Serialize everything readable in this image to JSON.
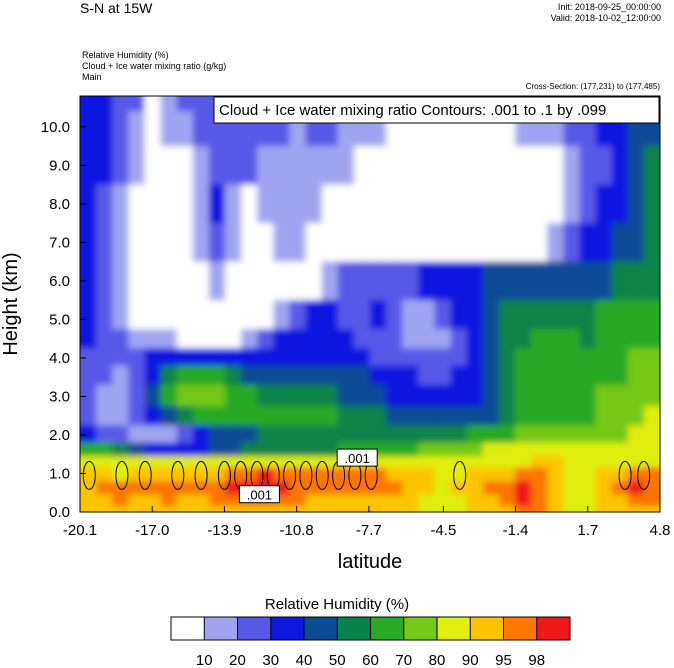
{
  "header": {
    "title": "S-N at 15W",
    "init": "Init: 2018-09-25_00:00:00",
    "valid": "Valid: 2018-10-02_12:00:00",
    "fields": [
      "Relative Humidity   (%)",
      "Cloud + Ice water mixing ratio   (g/kg)",
      "Main"
    ],
    "cross_section": "Cross-Section: (177,231) to (177,485)"
  },
  "chart_data": {
    "type": "heatmap",
    "title": "Cloud + Ice water mixing ratio Contours: .001 to .1 by .099",
    "xlabel": "latitude",
    "ylabel": "Height (km)",
    "x_ticks": [
      "-20.1",
      "-17.0",
      "-13.9",
      "-10.8",
      "-7.7",
      "-4.5",
      "-1.4",
      "1.7",
      "4.8"
    ],
    "y_ticks": [
      "0.0",
      "1.0",
      "2.0",
      "3.0",
      "4.0",
      "5.0",
      "6.0",
      "7.0",
      "8.0",
      "9.0",
      "10.0"
    ],
    "xlim": [
      -20.1,
      4.8
    ],
    "ylim": [
      0,
      10.8
    ],
    "contour_labels": [
      ".001",
      ".001"
    ],
    "colorbar": {
      "title": "Relative Humidity  (%)",
      "levels": [
        "10",
        "20",
        "30",
        "40",
        "50",
        "60",
        "70",
        "80",
        "90",
        "95",
        "98"
      ],
      "colors": [
        "#ffffff",
        "#a0a4f0",
        "#5858e8",
        "#0c18e0",
        "#0a4c96",
        "#08844a",
        "#28aa28",
        "#74c818",
        "#e0ee10",
        "#fcc400",
        "#fc7600",
        "#f01818"
      ]
    },
    "rh_rows": [
      {
        "h": 10.8,
        "rh": [
          3,
          3,
          2,
          2,
          0,
          1,
          2,
          2,
          2,
          2,
          2,
          2,
          2,
          2,
          2,
          2,
          2,
          2,
          1,
          1,
          1,
          1,
          1,
          1,
          1,
          1,
          1,
          1,
          1,
          2,
          2,
          3,
          3,
          3,
          3,
          4
        ]
      },
      {
        "h": 10.0,
        "rh": [
          3,
          3,
          2,
          1,
          0,
          1,
          1,
          2,
          2,
          2,
          2,
          2,
          2,
          1,
          2,
          2,
          1,
          1,
          1,
          0,
          0,
          0,
          0,
          0,
          0,
          0,
          0,
          1,
          1,
          1,
          2,
          2,
          3,
          3,
          4,
          4
        ]
      },
      {
        "h": 9.0,
        "rh": [
          3,
          3,
          2,
          1,
          0,
          0,
          0,
          1,
          2,
          2,
          2,
          1,
          1,
          1,
          1,
          1,
          1,
          0,
          0,
          0,
          0,
          0,
          0,
          0,
          0,
          0,
          0,
          0,
          0,
          0,
          1,
          2,
          2,
          3,
          4,
          5
        ]
      },
      {
        "h": 8.0,
        "rh": [
          3,
          2,
          1,
          0,
          0,
          0,
          0,
          1,
          3,
          1,
          0,
          1,
          1,
          1,
          1,
          0,
          0,
          0,
          0,
          0,
          0,
          0,
          0,
          0,
          0,
          0,
          0,
          0,
          0,
          0,
          1,
          2,
          3,
          3,
          4,
          5
        ]
      },
      {
        "h": 7.0,
        "rh": [
          3,
          2,
          1,
          0,
          0,
          0,
          0,
          1,
          2,
          1,
          0,
          0,
          1,
          1,
          0,
          0,
          0,
          0,
          0,
          0,
          0,
          0,
          0,
          0,
          0,
          0,
          0,
          0,
          0,
          1,
          2,
          3,
          3,
          4,
          4,
          5
        ]
      },
      {
        "h": 6.0,
        "rh": [
          3,
          2,
          1,
          0,
          0,
          0,
          0,
          0,
          1,
          0,
          0,
          0,
          0,
          0,
          0,
          1,
          2,
          2,
          2,
          2,
          2,
          3,
          3,
          3,
          3,
          4,
          4,
          4,
          4,
          4,
          4,
          4,
          4,
          5,
          5,
          5
        ]
      },
      {
        "h": 5.0,
        "rh": [
          3,
          2,
          1,
          0,
          0,
          0,
          0,
          0,
          0,
          0,
          0,
          0,
          1,
          2,
          3,
          3,
          2,
          2,
          3,
          2,
          1,
          1,
          2,
          3,
          3,
          4,
          5,
          5,
          5,
          5,
          5,
          5,
          6,
          6,
          6,
          6
        ]
      },
      {
        "h": 4.5,
        "rh": [
          3,
          2,
          2,
          1,
          1,
          1,
          0,
          0,
          0,
          0,
          1,
          2,
          3,
          3,
          3,
          3,
          3,
          2,
          2,
          2,
          1,
          1,
          1,
          2,
          3,
          4,
          5,
          5,
          6,
          6,
          6,
          5,
          6,
          6,
          6,
          6
        ]
      },
      {
        "h": 4.0,
        "rh": [
          2,
          2,
          2,
          2,
          3,
          3,
          3,
          3,
          3,
          3,
          3,
          3,
          3,
          3,
          3,
          3,
          3,
          3,
          2,
          2,
          2,
          2,
          2,
          2,
          3,
          4,
          5,
          6,
          6,
          6,
          6,
          6,
          6,
          6,
          7,
          7
        ]
      },
      {
        "h": 3.6,
        "rh": [
          2,
          2,
          1,
          2,
          3,
          5,
          6,
          6,
          6,
          5,
          4,
          4,
          4,
          4,
          4,
          4,
          4,
          4,
          3,
          3,
          3,
          2,
          2,
          3,
          3,
          4,
          5,
          6,
          6,
          6,
          6,
          6,
          6,
          6,
          7,
          7
        ]
      },
      {
        "h": 3.0,
        "rh": [
          2,
          1,
          1,
          2,
          4,
          6,
          7,
          7,
          7,
          6,
          6,
          5,
          5,
          5,
          5,
          5,
          4,
          4,
          4,
          3,
          3,
          3,
          3,
          3,
          3,
          4,
          5,
          6,
          6,
          6,
          6,
          6,
          7,
          7,
          7,
          7
        ]
      },
      {
        "h": 2.5,
        "rh": [
          2,
          1,
          1,
          2,
          3,
          4,
          5,
          6,
          6,
          6,
          6,
          6,
          6,
          6,
          6,
          6,
          5,
          5,
          5,
          4,
          4,
          4,
          4,
          4,
          4,
          4,
          5,
          6,
          6,
          6,
          6,
          6,
          7,
          7,
          7,
          8
        ]
      },
      {
        "h": 2.0,
        "rh": [
          3,
          2,
          2,
          1,
          1,
          1,
          2,
          3,
          4,
          4,
          4,
          5,
          5,
          5,
          5,
          5,
          5,
          5,
          5,
          5,
          5,
          5,
          5,
          5,
          6,
          6,
          6,
          7,
          7,
          7,
          7,
          7,
          7,
          7,
          8,
          8
        ]
      },
      {
        "h": 1.6,
        "rh": [
          6,
          6,
          5,
          4,
          3,
          3,
          3,
          3,
          4,
          4,
          5,
          5,
          5,
          5,
          5,
          5,
          6,
          6,
          6,
          6,
          6,
          7,
          7,
          7,
          7,
          8,
          8,
          8,
          8,
          8,
          8,
          8,
          8,
          8,
          8,
          8
        ]
      },
      {
        "h": 1.3,
        "rh": [
          8,
          8,
          8,
          8,
          8,
          8,
          8,
          8,
          8,
          8,
          8,
          8,
          8,
          8,
          8,
          8,
          8,
          8,
          8,
          8,
          8,
          8,
          8,
          8,
          8,
          8,
          8,
          8,
          9,
          9,
          8,
          8,
          8,
          8,
          8,
          8
        ]
      },
      {
        "h": 1.0,
        "rh": [
          9,
          9,
          8,
          9,
          9,
          9,
          9,
          9,
          9,
          10,
          10,
          11,
          10,
          10,
          10,
          10,
          10,
          10,
          10,
          9,
          9,
          9,
          8,
          8,
          9,
          9,
          9,
          10,
          10,
          9,
          8,
          8,
          9,
          9,
          10,
          10
        ]
      },
      {
        "h": 0.6,
        "rh": [
          9,
          10,
          10,
          10,
          10,
          10,
          10,
          10,
          10,
          11,
          11,
          11,
          11,
          10,
          10,
          10,
          10,
          10,
          10,
          10,
          9,
          9,
          8,
          9,
          9,
          10,
          10,
          11,
          10,
          9,
          8,
          8,
          9,
          10,
          11,
          10
        ]
      },
      {
        "h": 0.3,
        "rh": [
          9,
          9,
          10,
          9,
          9,
          10,
          9,
          9,
          10,
          10,
          10,
          10,
          10,
          10,
          9,
          9,
          9,
          9,
          9,
          9,
          9,
          8,
          8,
          8,
          9,
          9,
          10,
          11,
          10,
          9,
          8,
          8,
          9,
          9,
          10,
          10
        ]
      },
      {
        "h": 0.0,
        "rh": [
          9,
          9,
          9,
          9,
          9,
          9,
          9,
          9,
          9,
          9,
          9,
          9,
          9,
          9,
          9,
          9,
          9,
          9,
          9,
          9,
          9,
          8,
          8,
          8,
          9,
          9,
          9,
          10,
          10,
          9,
          8,
          8,
          9,
          9,
          9,
          9
        ]
      }
    ]
  }
}
